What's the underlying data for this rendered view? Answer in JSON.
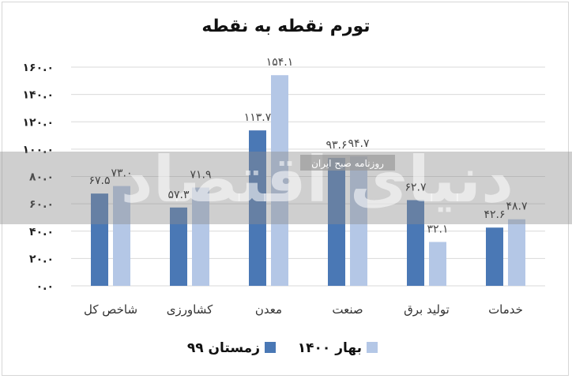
{
  "chart_data": {
    "type": "bar",
    "title": "تورم نقطه به نقطه",
    "xlabel": "",
    "ylabel": "",
    "categories": [
      "شاخص کل",
      "کشاورزی",
      "معدن",
      "صنعت",
      "تولید برق",
      "خدمات"
    ],
    "series": [
      {
        "name": "زمستان ۹۹",
        "color": "#4a78b5",
        "values": [
          67.5,
          57.3,
          113.7,
          93.6,
          62.7,
          42.6
        ],
        "labels": [
          "۶۷.۵",
          "۵۷.۳",
          "۱۱۳.۷",
          "۹۳.۶",
          "۶۲.۷",
          "۴۲.۶"
        ]
      },
      {
        "name": "بهار ۱۴۰۰",
        "color": "#b4c7e6",
        "values": [
          73.0,
          71.9,
          154.1,
          94.7,
          32.1,
          48.7
        ],
        "labels": [
          "۷۳.۰",
          "۷۱.۹",
          "۱۵۴.۱",
          "۹۴.۷",
          "۳۲.۱",
          "۴۸.۷"
        ]
      }
    ],
    "ylim": [
      0,
      160
    ],
    "yticks": [
      0,
      20,
      40,
      60,
      80,
      100,
      120,
      140,
      160
    ],
    "ytick_labels": [
      "۰.۰",
      "۲۰.۰",
      "۴۰.۰",
      "۶۰.۰",
      "۸۰.۰",
      "۱۰۰.۰",
      "۱۲۰.۰",
      "۱۴۰.۰",
      "۱۶۰.۰"
    ],
    "grid": true,
    "legend_position": "bottom"
  },
  "watermark": {
    "logo_text": "دنیای اقتصاد",
    "band_text": "روزنامه صبح ایران"
  }
}
